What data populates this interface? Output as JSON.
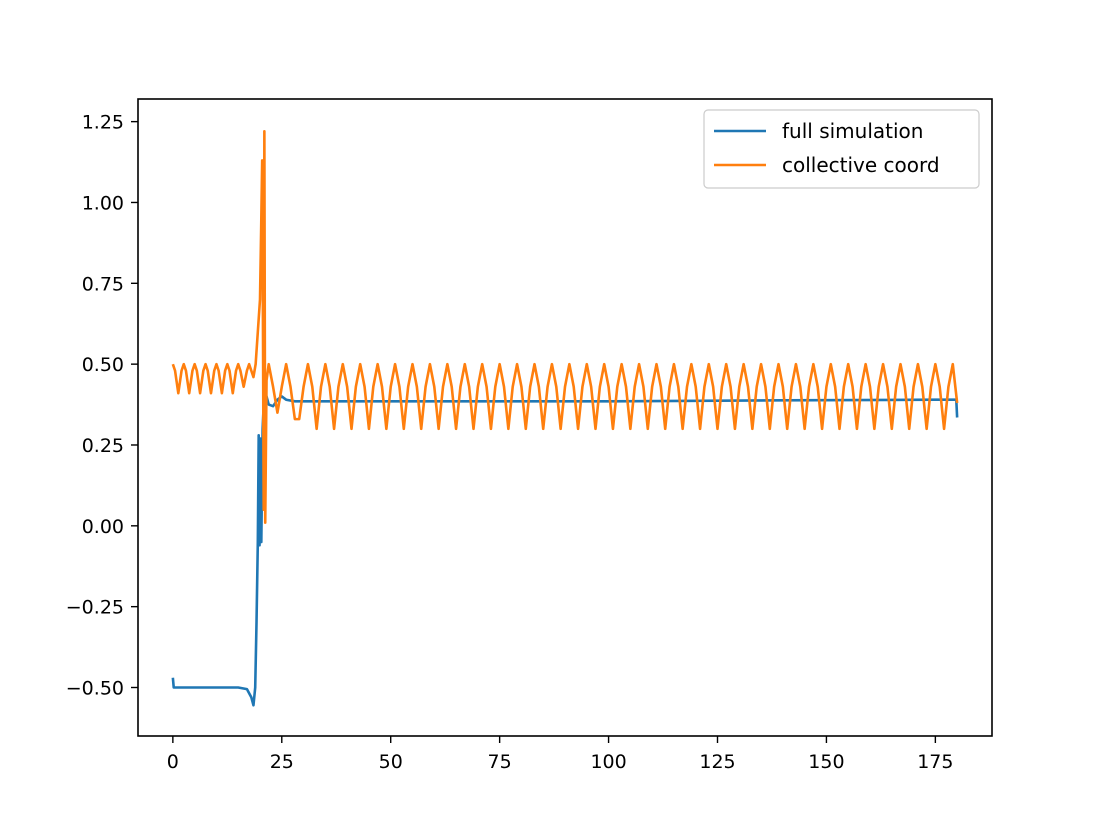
{
  "chart_data": {
    "type": "line",
    "title": "",
    "xlabel": "",
    "ylabel": "",
    "xlim": [
      -8,
      188
    ],
    "ylim": [
      -0.65,
      1.32
    ],
    "x_ticks": [
      {
        "value": 0,
        "label": "0"
      },
      {
        "value": 25,
        "label": "25"
      },
      {
        "value": 50,
        "label": "50"
      },
      {
        "value": 75,
        "label": "75"
      },
      {
        "value": 100,
        "label": "100"
      },
      {
        "value": 125,
        "label": "125"
      },
      {
        "value": 150,
        "label": "150"
      },
      {
        "value": 175,
        "label": "175"
      }
    ],
    "y_ticks": [
      {
        "value": -0.5,
        "label": "−0.50"
      },
      {
        "value": -0.25,
        "label": "−0.25"
      },
      {
        "value": 0,
        "label": "0.00"
      },
      {
        "value": 0.25,
        "label": "0.25"
      },
      {
        "value": 0.5,
        "label": "0.50"
      },
      {
        "value": 0.75,
        "label": "0.75"
      },
      {
        "value": 1.0,
        "label": "1.00"
      },
      {
        "value": 1.25,
        "label": "1.25"
      }
    ],
    "grid": false,
    "legend": {
      "placement": "top-right"
    },
    "series": [
      {
        "name": "full simulation",
        "color": "#1f77b4",
        "points": [
          [
            0,
            -0.47
          ],
          [
            0.2,
            -0.5
          ],
          [
            5,
            -0.5
          ],
          [
            10,
            -0.5
          ],
          [
            15,
            -0.5
          ],
          [
            17,
            -0.505
          ],
          [
            18,
            -0.53
          ],
          [
            18.5,
            -0.555
          ],
          [
            18.9,
            -0.5
          ],
          [
            19.2,
            -0.3
          ],
          [
            19.5,
            -0.05
          ],
          [
            19.7,
            0.28
          ],
          [
            19.9,
            -0.06
          ],
          [
            20.1,
            0.27
          ],
          [
            20.3,
            -0.05
          ],
          [
            20.6,
            0.3
          ],
          [
            21,
            0.42
          ],
          [
            21.5,
            0.4
          ],
          [
            22,
            0.375
          ],
          [
            23,
            0.37
          ],
          [
            24,
            0.39
          ],
          [
            25,
            0.4
          ],
          [
            26,
            0.39
          ],
          [
            28,
            0.385
          ],
          [
            35,
            0.385
          ],
          [
            60,
            0.385
          ],
          [
            100,
            0.385
          ],
          [
            140,
            0.388
          ],
          [
            175,
            0.39
          ],
          [
            179.8,
            0.39
          ],
          [
            180,
            0.335
          ]
        ]
      },
      {
        "name": "collective coord",
        "color": "#ff7f0e",
        "points": [
          [
            0,
            0.5
          ],
          [
            0.5,
            0.48
          ],
          [
            1.25,
            0.41
          ],
          [
            2,
            0.48
          ],
          [
            2.5,
            0.5
          ],
          [
            3,
            0.48
          ],
          [
            3.75,
            0.41
          ],
          [
            4.5,
            0.48
          ],
          [
            5,
            0.5
          ],
          [
            5.5,
            0.48
          ],
          [
            6.25,
            0.41
          ],
          [
            7,
            0.48
          ],
          [
            7.5,
            0.5
          ],
          [
            8,
            0.48
          ],
          [
            8.75,
            0.41
          ],
          [
            9.5,
            0.48
          ],
          [
            10,
            0.5
          ],
          [
            10.5,
            0.48
          ],
          [
            11.25,
            0.41
          ],
          [
            12,
            0.48
          ],
          [
            12.5,
            0.5
          ],
          [
            13,
            0.48
          ],
          [
            13.75,
            0.41
          ],
          [
            14.5,
            0.48
          ],
          [
            15,
            0.5
          ],
          [
            15.5,
            0.48
          ],
          [
            16.25,
            0.43
          ],
          [
            17,
            0.48
          ],
          [
            17.5,
            0.5
          ],
          [
            18,
            0.48
          ],
          [
            18.5,
            0.46
          ],
          [
            19,
            0.5
          ],
          [
            19.5,
            0.6
          ],
          [
            20,
            0.7
          ],
          [
            20.3,
            0.95
          ],
          [
            20.5,
            1.13
          ],
          [
            20.7,
            0.55
          ],
          [
            20.85,
            0.05
          ],
          [
            21,
            1.22
          ],
          [
            21.2,
            0.01
          ],
          [
            21.5,
            0.45
          ],
          [
            22,
            0.5
          ],
          [
            23,
            0.43
          ],
          [
            24,
            0.35
          ],
          [
            25,
            0.43
          ],
          [
            26,
            0.5
          ],
          [
            27,
            0.43
          ],
          [
            28,
            0.33
          ],
          [
            29,
            0.33
          ],
          [
            30,
            0.43
          ],
          [
            31,
            0.5
          ],
          [
            32,
            0.43
          ],
          [
            33,
            0.3
          ],
          [
            34,
            0.43
          ],
          [
            35,
            0.5
          ],
          [
            36,
            0.43
          ],
          [
            37,
            0.3
          ],
          [
            38,
            0.43
          ],
          [
            39,
            0.5
          ],
          [
            40,
            0.43
          ],
          [
            41,
            0.3
          ],
          [
            42,
            0.43
          ],
          [
            43,
            0.5
          ],
          [
            44,
            0.43
          ],
          [
            45,
            0.3
          ],
          [
            46,
            0.43
          ],
          [
            47,
            0.5
          ],
          [
            48,
            0.43
          ],
          [
            49,
            0.3
          ],
          [
            50,
            0.43
          ],
          [
            51,
            0.5
          ],
          [
            52,
            0.43
          ],
          [
            53,
            0.3
          ],
          [
            54,
            0.43
          ],
          [
            55,
            0.5
          ],
          [
            56,
            0.43
          ],
          [
            57,
            0.3
          ],
          [
            58,
            0.43
          ],
          [
            59,
            0.5
          ],
          [
            60,
            0.43
          ],
          [
            61,
            0.3
          ],
          [
            62,
            0.43
          ],
          [
            63,
            0.5
          ],
          [
            64,
            0.43
          ],
          [
            65,
            0.3
          ],
          [
            66,
            0.43
          ],
          [
            67,
            0.5
          ],
          [
            68,
            0.43
          ],
          [
            69,
            0.3
          ],
          [
            70,
            0.43
          ],
          [
            71,
            0.5
          ],
          [
            72,
            0.43
          ],
          [
            73,
            0.3
          ],
          [
            74,
            0.43
          ],
          [
            75,
            0.5
          ],
          [
            76,
            0.43
          ],
          [
            77,
            0.3
          ],
          [
            78,
            0.43
          ],
          [
            79,
            0.5
          ],
          [
            80,
            0.43
          ],
          [
            81,
            0.3
          ],
          [
            82,
            0.43
          ],
          [
            83,
            0.5
          ],
          [
            84,
            0.43
          ],
          [
            85,
            0.3
          ],
          [
            86,
            0.43
          ],
          [
            87,
            0.5
          ],
          [
            88,
            0.43
          ],
          [
            89,
            0.3
          ],
          [
            90,
            0.43
          ],
          [
            91,
            0.5
          ],
          [
            92,
            0.43
          ],
          [
            93,
            0.3
          ],
          [
            94,
            0.43
          ],
          [
            95,
            0.5
          ],
          [
            96,
            0.43
          ],
          [
            97,
            0.3
          ],
          [
            98,
            0.43
          ],
          [
            99,
            0.5
          ],
          [
            100,
            0.43
          ],
          [
            101,
            0.3
          ],
          [
            102,
            0.43
          ],
          [
            103,
            0.5
          ],
          [
            104,
            0.43
          ],
          [
            105,
            0.3
          ],
          [
            106,
            0.43
          ],
          [
            107,
            0.5
          ],
          [
            108,
            0.43
          ],
          [
            109,
            0.3
          ],
          [
            110,
            0.43
          ],
          [
            111,
            0.5
          ],
          [
            112,
            0.43
          ],
          [
            113,
            0.3
          ],
          [
            114,
            0.43
          ],
          [
            115,
            0.5
          ],
          [
            116,
            0.43
          ],
          [
            117,
            0.3
          ],
          [
            118,
            0.43
          ],
          [
            119,
            0.5
          ],
          [
            120,
            0.43
          ],
          [
            121,
            0.3
          ],
          [
            122,
            0.43
          ],
          [
            123,
            0.5
          ],
          [
            124,
            0.43
          ],
          [
            125,
            0.3
          ],
          [
            126,
            0.43
          ],
          [
            127,
            0.5
          ],
          [
            128,
            0.43
          ],
          [
            129,
            0.3
          ],
          [
            130,
            0.43
          ],
          [
            131,
            0.5
          ],
          [
            132,
            0.43
          ],
          [
            133,
            0.3
          ],
          [
            134,
            0.43
          ],
          [
            135,
            0.5
          ],
          [
            136,
            0.43
          ],
          [
            137,
            0.3
          ],
          [
            138,
            0.43
          ],
          [
            139,
            0.5
          ],
          [
            140,
            0.43
          ],
          [
            141,
            0.3
          ],
          [
            142,
            0.43
          ],
          [
            143,
            0.5
          ],
          [
            144,
            0.43
          ],
          [
            145,
            0.3
          ],
          [
            146,
            0.43
          ],
          [
            147,
            0.5
          ],
          [
            148,
            0.43
          ],
          [
            149,
            0.3
          ],
          [
            150,
            0.43
          ],
          [
            151,
            0.5
          ],
          [
            152,
            0.43
          ],
          [
            153,
            0.3
          ],
          [
            154,
            0.43
          ],
          [
            155,
            0.5
          ],
          [
            156,
            0.43
          ],
          [
            157,
            0.3
          ],
          [
            158,
            0.43
          ],
          [
            159,
            0.5
          ],
          [
            160,
            0.43
          ],
          [
            161,
            0.3
          ],
          [
            162,
            0.43
          ],
          [
            163,
            0.5
          ],
          [
            164,
            0.43
          ],
          [
            165,
            0.3
          ],
          [
            166,
            0.43
          ],
          [
            167,
            0.5
          ],
          [
            168,
            0.43
          ],
          [
            169,
            0.3
          ],
          [
            170,
            0.43
          ],
          [
            171,
            0.5
          ],
          [
            172,
            0.43
          ],
          [
            173,
            0.3
          ],
          [
            174,
            0.43
          ],
          [
            175,
            0.5
          ],
          [
            176,
            0.43
          ],
          [
            177,
            0.3
          ],
          [
            178,
            0.43
          ],
          [
            179,
            0.5
          ],
          [
            180,
            0.38
          ]
        ]
      }
    ]
  }
}
